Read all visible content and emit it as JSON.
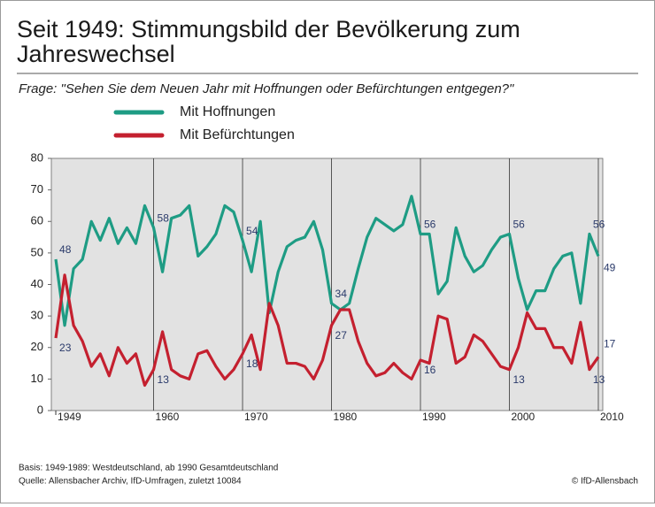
{
  "chart_data": {
    "type": "line",
    "title": "Seit 1949: Stimmungsbild der Bevölkerung zum Jahreswechsel",
    "subtitle": "Frage: \"Sehen Sie dem Neuen Jahr mit Hoffnungen oder Befürchtungen entgegen?\"",
    "x": [
      1949,
      1950,
      1951,
      1952,
      1953,
      1954,
      1955,
      1956,
      1957,
      1958,
      1959,
      1960,
      1961,
      1962,
      1963,
      1964,
      1965,
      1966,
      1967,
      1968,
      1969,
      1970,
      1971,
      1972,
      1973,
      1974,
      1975,
      1976,
      1977,
      1978,
      1979,
      1980,
      1981,
      1982,
      1983,
      1984,
      1985,
      1986,
      1987,
      1988,
      1989,
      1990,
      1991,
      1992,
      1993,
      1994,
      1995,
      1996,
      1997,
      1998,
      1999,
      2000,
      2001,
      2002,
      2003,
      2004,
      2005,
      2006,
      2007,
      2008,
      2009,
      2010
    ],
    "series": [
      {
        "name": "Mit Hoffnungen",
        "color": "#1e9c84",
        "values": [
          48,
          27,
          45,
          48,
          60,
          54,
          61,
          53,
          58,
          53,
          65,
          58,
          44,
          61,
          62,
          65,
          49,
          52,
          56,
          65,
          63,
          54,
          44,
          60,
          31,
          44,
          52,
          54,
          55,
          60,
          51,
          34,
          32,
          34,
          45,
          55,
          61,
          59,
          57,
          59,
          68,
          56,
          56,
          37,
          41,
          58,
          49,
          44,
          46,
          51,
          55,
          56,
          42,
          32,
          38,
          38,
          45,
          49,
          50,
          34,
          56,
          49
        ],
        "value_labels": [
          "48",
          null,
          null,
          null,
          null,
          null,
          null,
          null,
          null,
          null,
          null,
          "58",
          null,
          null,
          null,
          null,
          null,
          null,
          null,
          null,
          null,
          "54",
          null,
          null,
          null,
          null,
          null,
          null,
          null,
          null,
          null,
          "34",
          null,
          null,
          null,
          null,
          null,
          null,
          null,
          null,
          null,
          "56",
          null,
          null,
          null,
          null,
          null,
          null,
          null,
          null,
          null,
          "56",
          null,
          null,
          null,
          null,
          null,
          null,
          null,
          null,
          "56",
          "49"
        ]
      },
      {
        "name": "Mit Befürchtungen",
        "color": "#c4202f",
        "values": [
          23,
          43,
          27,
          22,
          14,
          18,
          11,
          20,
          15,
          18,
          8,
          13,
          25,
          13,
          11,
          10,
          18,
          19,
          14,
          10,
          13,
          18,
          24,
          13,
          34,
          27,
          15,
          15,
          14,
          10,
          16,
          27,
          32,
          32,
          22,
          15,
          11,
          12,
          15,
          12,
          10,
          16,
          15,
          30,
          29,
          15,
          17,
          24,
          22,
          18,
          14,
          13,
          20,
          31,
          26,
          26,
          20,
          20,
          15,
          28,
          13,
          17
        ],
        "value_labels": [
          "23",
          null,
          null,
          null,
          null,
          null,
          null,
          null,
          null,
          null,
          null,
          "13",
          null,
          null,
          null,
          null,
          null,
          null,
          null,
          null,
          null,
          "18",
          null,
          null,
          null,
          null,
          null,
          null,
          null,
          null,
          null,
          "27",
          null,
          null,
          null,
          null,
          null,
          null,
          null,
          null,
          null,
          "16",
          null,
          null,
          null,
          null,
          null,
          null,
          null,
          null,
          null,
          "13",
          null,
          null,
          null,
          null,
          null,
          null,
          null,
          null,
          "13",
          "17"
        ]
      }
    ],
    "xlim": [
      1948.5,
      2010.5
    ],
    "xticks": [
      1949,
      1960,
      1970,
      1980,
      1990,
      2000,
      2010
    ],
    "ylim": [
      0,
      80
    ],
    "yticks": [
      0,
      10,
      20,
      30,
      40,
      50,
      60,
      70,
      80
    ],
    "footnotes": [
      "Basis: 1949-1989: Westdeutschland, ab 1990 Gesamtdeutschland",
      "Quelle: Allensbacher Archiv, IfD-Umfragen, zuletzt 10084"
    ],
    "credit": "© IfD-Allensbach"
  }
}
